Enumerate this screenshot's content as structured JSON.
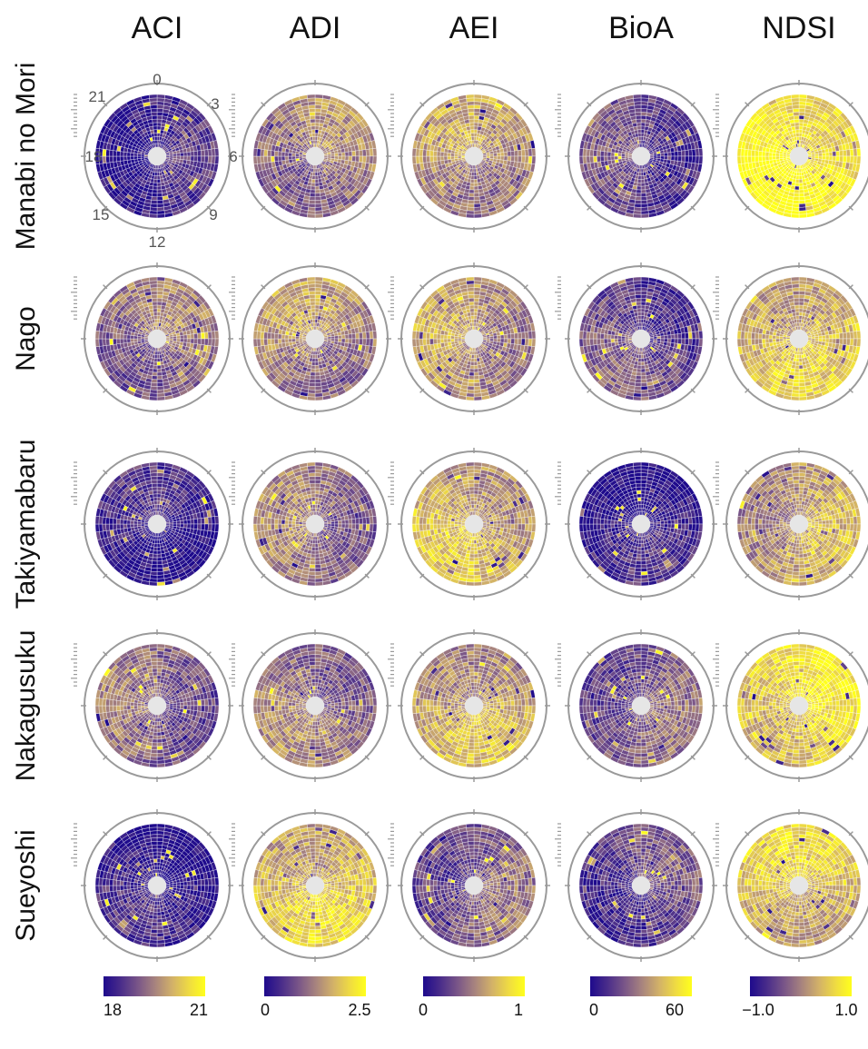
{
  "chart_data": {
    "type": "heatmap",
    "layout": "grid of polar (clock-face) heatmaps: rows = sites, columns = acoustic indices",
    "columns": [
      {
        "name": "ACI",
        "colorbar_ticks": [
          "18",
          "21"
        ],
        "range": [
          18,
          21
        ]
      },
      {
        "name": "ADI",
        "colorbar_ticks": [
          "0",
          "2.5"
        ],
        "range": [
          0,
          2.5
        ]
      },
      {
        "name": "AEI",
        "colorbar_ticks": [
          "0",
          "1"
        ],
        "range": [
          0,
          1
        ]
      },
      {
        "name": "BioA",
        "colorbar_ticks": [
          "0",
          "60"
        ],
        "range": [
          0,
          60
        ]
      },
      {
        "name": "NDSI",
        "colorbar_ticks": [
          "−1.0",
          "1.0"
        ],
        "range": [
          -1.0,
          1.0
        ]
      }
    ],
    "rows": [
      "Manabi no Mori",
      "Nago",
      "Takiyamabaru",
      "Nakagusuku",
      "Sueyoshi"
    ],
    "hour_labels": [
      "0",
      "3",
      "6",
      "9",
      "12",
      "15",
      "18",
      "21"
    ],
    "colormap": [
      "#1e0a8c",
      "#4a2d8a",
      "#7a5688",
      "#a8847e",
      "#d3b268",
      "#f0dd40",
      "#ffff1c"
    ],
    "mean_level": [
      [
        0.12,
        0.45,
        0.55,
        0.25,
        0.92
      ],
      [
        0.42,
        0.52,
        0.55,
        0.28,
        0.7
      ],
      [
        0.1,
        0.45,
        0.65,
        0.1,
        0.6
      ],
      [
        0.38,
        0.45,
        0.62,
        0.35,
        0.8
      ],
      [
        0.1,
        0.72,
        0.35,
        0.25,
        0.72
      ]
    ]
  }
}
